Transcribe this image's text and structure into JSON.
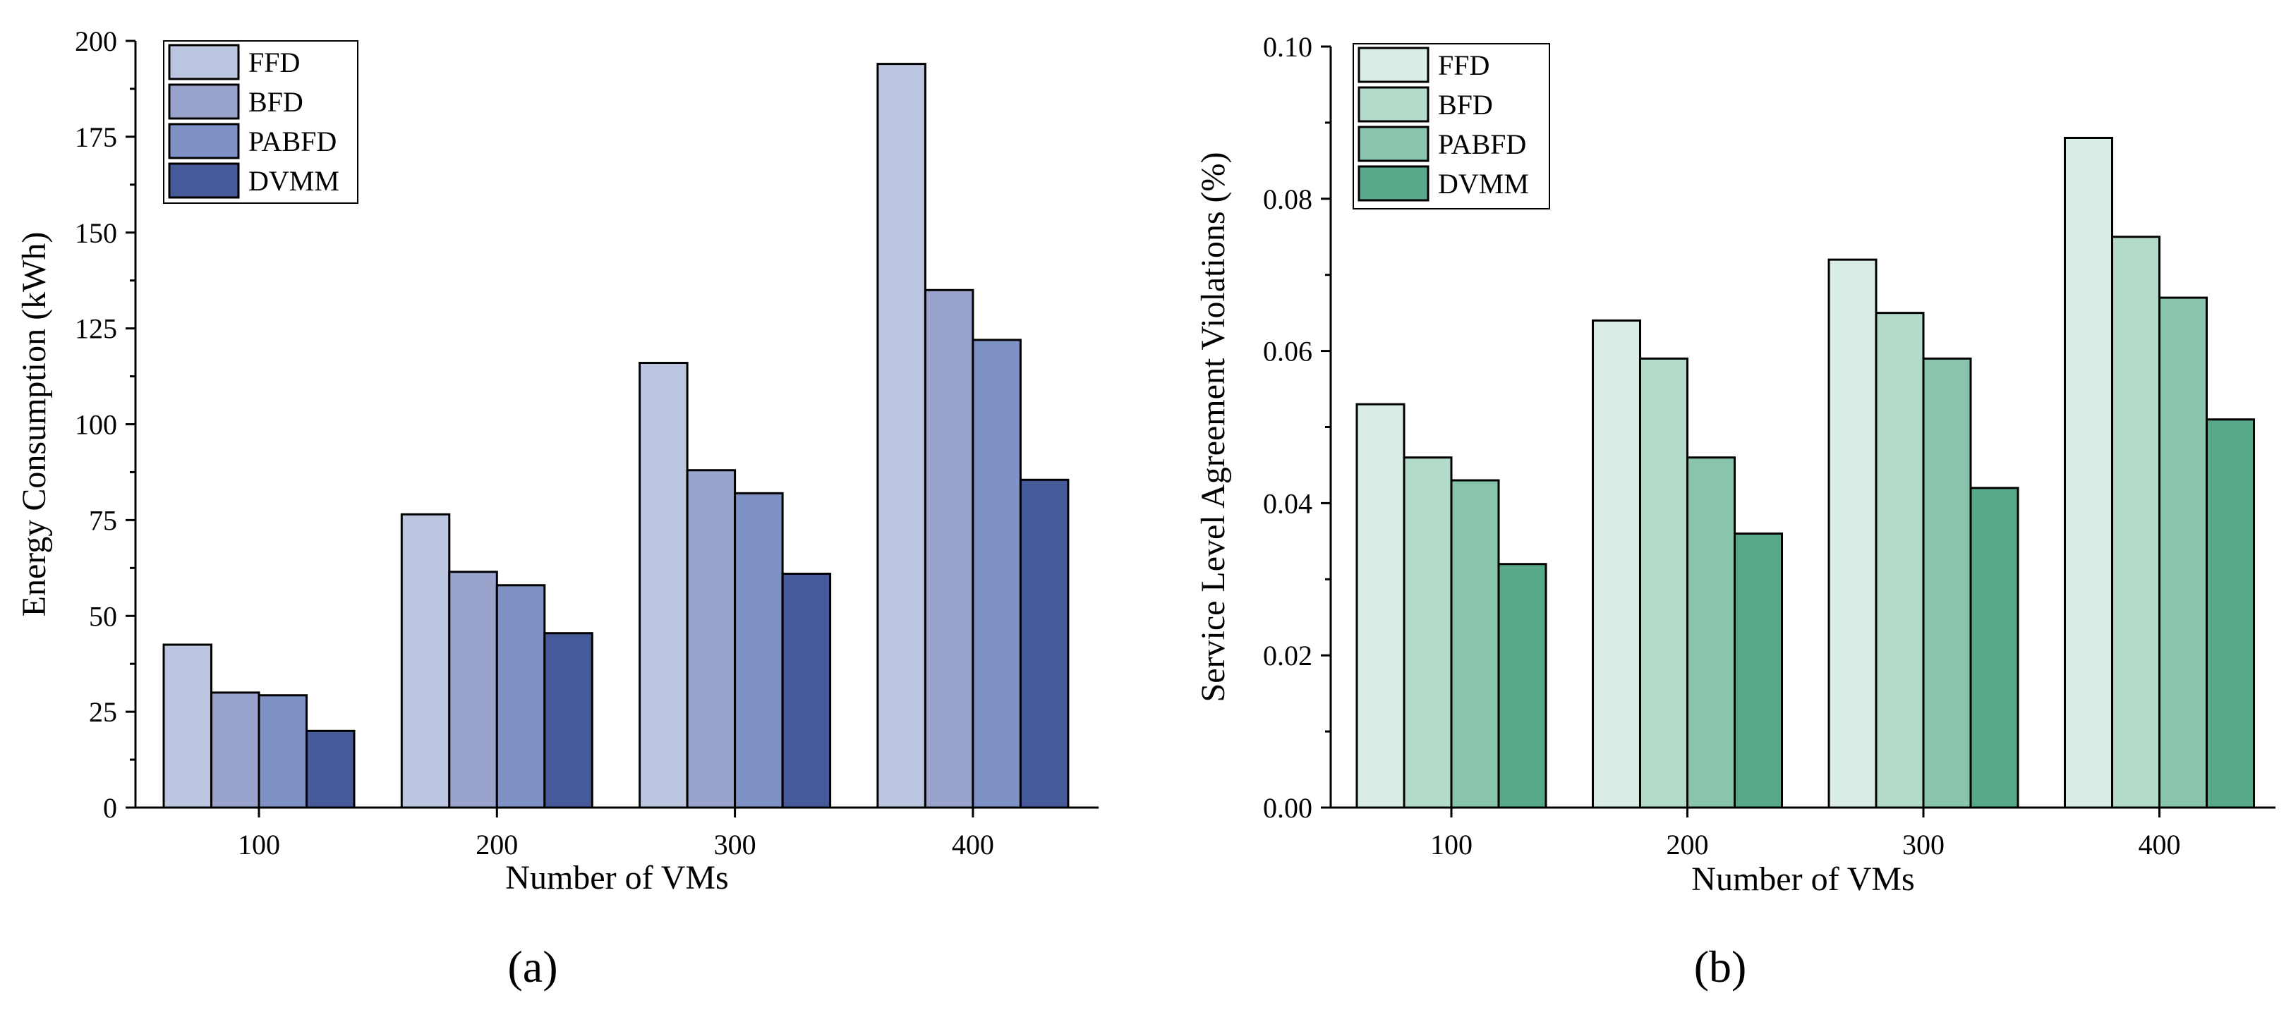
{
  "chart_data": [
    {
      "id": "a",
      "type": "bar",
      "panel_label": "(a)",
      "title": "",
      "xlabel": "Number of VMs",
      "ylabel": "Energy Consumption (kWh)",
      "categories": [
        "100",
        "200",
        "300",
        "400"
      ],
      "ylim": [
        0,
        200
      ],
      "yticks": [
        0,
        25,
        50,
        75,
        100,
        125,
        150,
        175,
        200
      ],
      "ytick_labels": [
        "0",
        "25",
        "50",
        "75",
        "100",
        "125",
        "150",
        "175",
        "200"
      ],
      "legend_position": "top-left",
      "series": [
        {
          "name": "FFD",
          "color": "#bdc6e0",
          "values": [
            42.5,
            76.5,
            116,
            194
          ]
        },
        {
          "name": "BFD",
          "color": "#9aa3cc",
          "values": [
            30,
            61.5,
            88,
            135
          ]
        },
        {
          "name": "PABFD",
          "color": "#7f92c6",
          "values": [
            29.3,
            58,
            82,
            122
          ]
        },
        {
          "name": "DVMM",
          "color": "#465a99",
          "values": [
            20,
            45.5,
            61,
            85.5
          ]
        }
      ]
    },
    {
      "id": "b",
      "type": "bar",
      "panel_label": "(b)",
      "title": "",
      "xlabel": "Number of VMs",
      "ylabel": "Service Level Agreement Violations (%)",
      "categories": [
        "100",
        "200",
        "300",
        "400"
      ],
      "ylim": [
        0,
        0.1
      ],
      "yticks": [
        0,
        0.02,
        0.04,
        0.06,
        0.08,
        0.1
      ],
      "ytick_labels": [
        "0.00",
        "0.02",
        "0.04",
        "0.06",
        "0.08",
        "0.10"
      ],
      "legend_position": "top-left",
      "series": [
        {
          "name": "FFD",
          "color": "#d9ede4",
          "values": [
            0.053,
            0.064,
            0.072,
            0.088
          ]
        },
        {
          "name": "BFD",
          "color": "#b2dcc9",
          "values": [
            0.046,
            0.059,
            0.065,
            0.075
          ]
        },
        {
          "name": "PABFD",
          "color": "#89c5ac",
          "values": [
            0.043,
            0.046,
            0.059,
            0.067
          ]
        },
        {
          "name": "DVMM",
          "color": "#58a98a",
          "values": [
            0.032,
            0.036,
            0.042,
            0.051
          ]
        }
      ]
    }
  ]
}
